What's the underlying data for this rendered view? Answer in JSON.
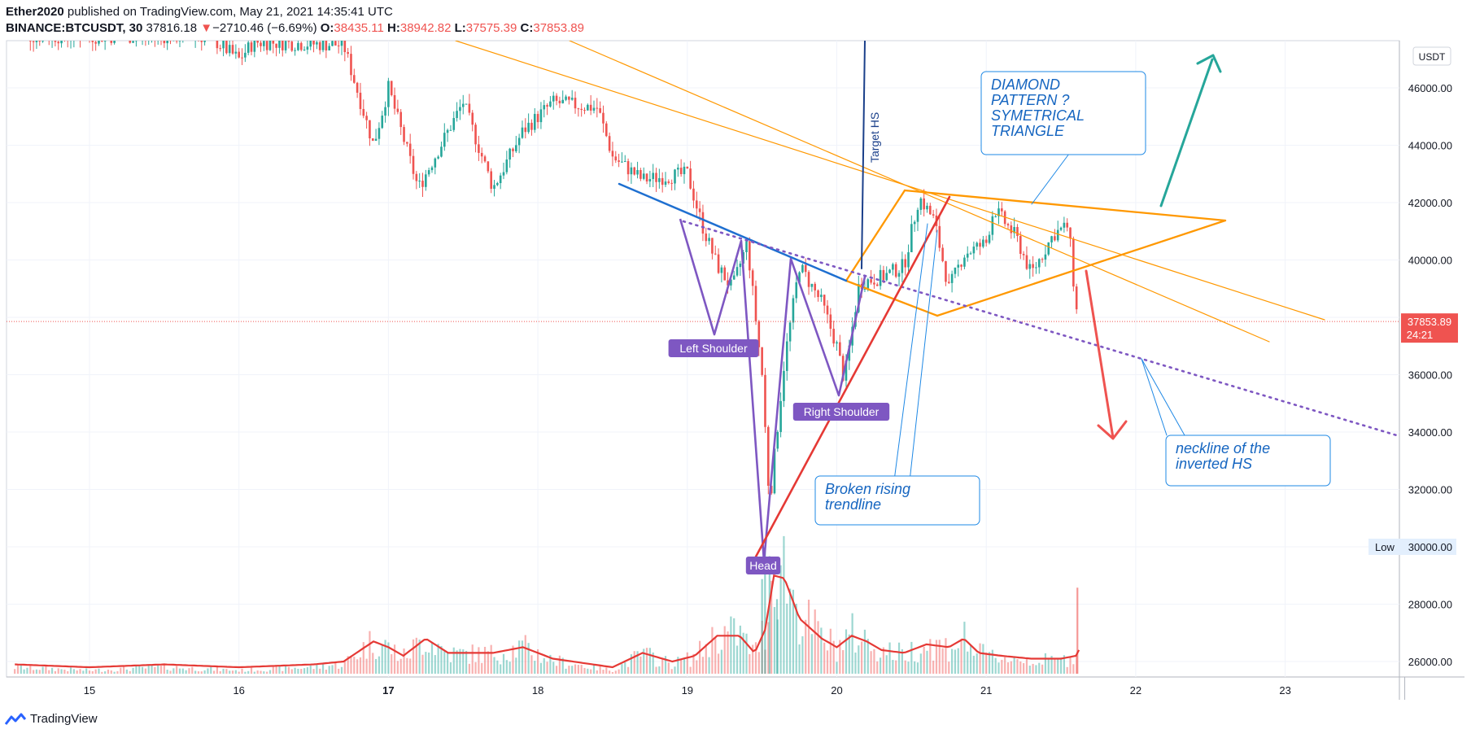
{
  "header": {
    "author": "Ether2020",
    "published": "published on TradingView.com, May 21, 2021 14:35:41 UTC",
    "symbol": "BINANCE:BTCUSDT, 30",
    "last": "37816.18",
    "change_arrow": "▼",
    "change": "−2710.46 (−6.69%)",
    "o_label": "O:",
    "o": "38435.11",
    "h_label": "H:",
    "h": "38942.82",
    "l_label": "L:",
    "l": "37575.39",
    "c_label": "C:",
    "c": "37853.89"
  },
  "footer": {
    "brand": "TradingView"
  },
  "chart_data": {
    "type": "candlestick",
    "symbol": "BINANCE:BTCUSDT",
    "interval": "30",
    "currency_label": "USDT",
    "x_ticks": [
      "15",
      "16",
      "17",
      "18",
      "19",
      "20",
      "21",
      "22",
      "23"
    ],
    "y_ticks": [
      "26000.00",
      "28000.00",
      "30000.00",
      "32000.00",
      "34000.00",
      "36000.00",
      "38000.00",
      "40000.00",
      "42000.00",
      "44000.00",
      "46000.00"
    ],
    "ylim": [
      25500,
      47500
    ],
    "xlim": [
      14.5,
      23.8
    ],
    "last_price_label": "37853.89",
    "countdown_label": "24:21",
    "low_label": "Low",
    "low_value_label": "30000.00",
    "price_path": [
      [
        15.8,
        47800
      ],
      [
        16.0,
        47000
      ],
      [
        16.1,
        47600
      ],
      [
        16.7,
        47500
      ],
      [
        16.9,
        44000
      ],
      [
        17.0,
        46000
      ],
      [
        17.2,
        42500
      ],
      [
        17.5,
        45500
      ],
      [
        17.7,
        42500
      ],
      [
        17.9,
        44500
      ],
      [
        18.1,
        45500
      ],
      [
        18.4,
        45300
      ],
      [
        18.5,
        43600
      ],
      [
        18.7,
        42800
      ],
      [
        19.0,
        43000
      ],
      [
        19.1,
        41200
      ],
      [
        19.2,
        39800
      ],
      [
        19.3,
        39000
      ],
      [
        19.4,
        40600
      ],
      [
        19.5,
        36000
      ],
      [
        19.55,
        31500
      ],
      [
        19.65,
        36500
      ],
      [
        19.75,
        39800
      ],
      [
        19.9,
        38500
      ],
      [
        20.0,
        37000
      ],
      [
        20.05,
        35800
      ],
      [
        20.15,
        39200
      ],
      [
        20.3,
        39400
      ],
      [
        20.45,
        39800
      ],
      [
        20.55,
        42200
      ],
      [
        20.65,
        41400
      ],
      [
        20.75,
        39000
      ],
      [
        20.85,
        40200
      ],
      [
        21.0,
        40600
      ],
      [
        21.05,
        41800
      ],
      [
        21.2,
        40800
      ],
      [
        21.3,
        39500
      ],
      [
        21.45,
        40900
      ],
      [
        21.55,
        41200
      ],
      [
        21.6,
        38300
      ],
      [
        21.62,
        37850
      ]
    ],
    "moving_average_path": [
      [
        14.5,
        25900
      ],
      [
        15.0,
        25800
      ],
      [
        15.5,
        25900
      ],
      [
        16.0,
        25800
      ],
      [
        16.5,
        25900
      ],
      [
        16.7,
        26000
      ],
      [
        16.9,
        26700
      ],
      [
        17.0,
        26500
      ],
      [
        17.1,
        26200
      ],
      [
        17.25,
        26800
      ],
      [
        17.4,
        26300
      ],
      [
        17.7,
        26300
      ],
      [
        17.9,
        26500
      ],
      [
        18.1,
        26100
      ],
      [
        18.5,
        25800
      ],
      [
        18.7,
        26300
      ],
      [
        18.9,
        26000
      ],
      [
        19.05,
        26200
      ],
      [
        19.2,
        26900
      ],
      [
        19.35,
        26900
      ],
      [
        19.45,
        26300
      ],
      [
        19.52,
        27100
      ],
      [
        19.58,
        29000
      ],
      [
        19.65,
        28900
      ],
      [
        19.75,
        27500
      ],
      [
        19.9,
        26800
      ],
      [
        20.0,
        26500
      ],
      [
        20.1,
        26900
      ],
      [
        20.2,
        26700
      ],
      [
        20.3,
        26400
      ],
      [
        20.45,
        26300
      ],
      [
        20.6,
        26600
      ],
      [
        20.75,
        26500
      ],
      [
        20.85,
        26800
      ],
      [
        20.95,
        26300
      ],
      [
        21.1,
        26200
      ],
      [
        21.3,
        26100
      ],
      [
        21.5,
        26100
      ],
      [
        21.6,
        26200
      ],
      [
        21.62,
        26400
      ]
    ],
    "annotations": {
      "left_shoulder": "Left Shoulder",
      "head": "Head",
      "right_shoulder": "Right Shoulder",
      "target": "Target HS",
      "diamond": [
        "DIAMOND",
        "PATTERN ?",
        "SYMETRICAL",
        "TRIANGLE"
      ],
      "broken": [
        "Broken rising",
        "trendline"
      ],
      "neckline": [
        "neckline of the",
        "inverted HS"
      ]
    },
    "colors": {
      "up": "#26a69a",
      "down": "#ef5350",
      "pattern": "#7e57c2",
      "orange": "#ff9800",
      "blue_trend": "#1e6fd0",
      "target_line": "#1a3f8a",
      "teal_arrow": "#26a69a",
      "red_arrow": "#ef5350",
      "rising_trend": "#e53935",
      "note_text": "#1565c0"
    }
  }
}
